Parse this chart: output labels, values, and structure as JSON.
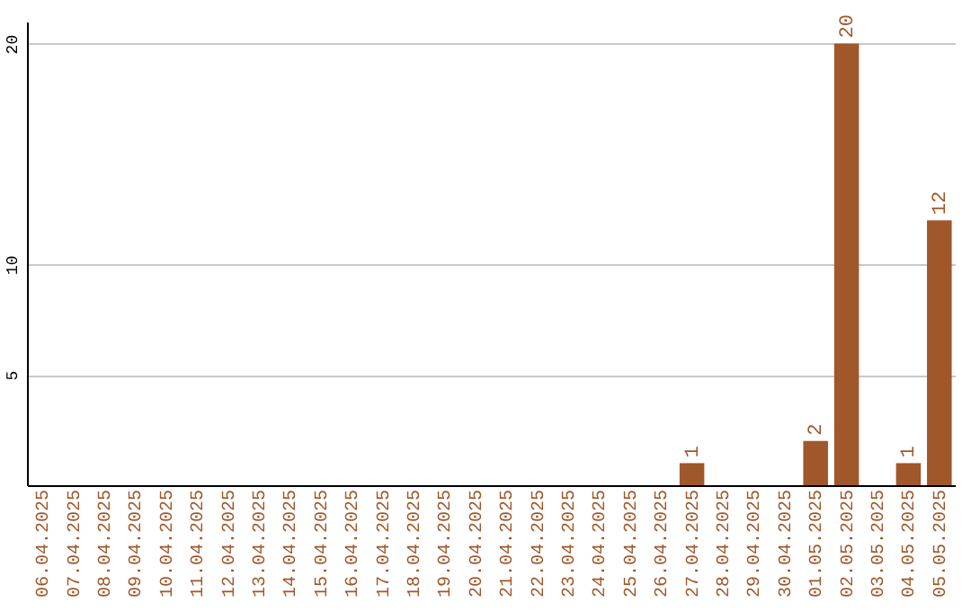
{
  "chart_data": {
    "type": "bar",
    "categories": [
      "06.04.2025",
      "07.04.2025",
      "08.04.2025",
      "09.04.2025",
      "10.04.2025",
      "11.04.2025",
      "12.04.2025",
      "13.04.2025",
      "14.04.2025",
      "15.04.2025",
      "16.04.2025",
      "17.04.2025",
      "18.04.2025",
      "19.04.2025",
      "20.04.2025",
      "21.04.2025",
      "22.04.2025",
      "23.04.2025",
      "24.04.2025",
      "25.04.2025",
      "26.04.2025",
      "27.04.2025",
      "28.04.2025",
      "29.04.2025",
      "30.04.2025",
      "01.05.2025",
      "02.05.2025",
      "03.05.2025",
      "04.05.2025",
      "05.05.2025"
    ],
    "values": [
      0,
      0,
      0,
      0,
      0,
      0,
      0,
      0,
      0,
      0,
      0,
      0,
      0,
      0,
      0,
      0,
      0,
      0,
      0,
      0,
      0,
      1,
      0,
      0,
      0,
      2,
      20,
      0,
      1,
      12
    ],
    "value_labels": [
      null,
      null,
      null,
      null,
      null,
      null,
      null,
      null,
      null,
      null,
      null,
      null,
      null,
      null,
      null,
      null,
      null,
      null,
      null,
      null,
      null,
      "1",
      null,
      null,
      null,
      "2",
      "20",
      null,
      "1",
      "12"
    ],
    "color": "#a0572a",
    "ylim": [
      0,
      21
    ],
    "yticks": [
      5,
      10,
      20
    ],
    "grid": "y"
  }
}
